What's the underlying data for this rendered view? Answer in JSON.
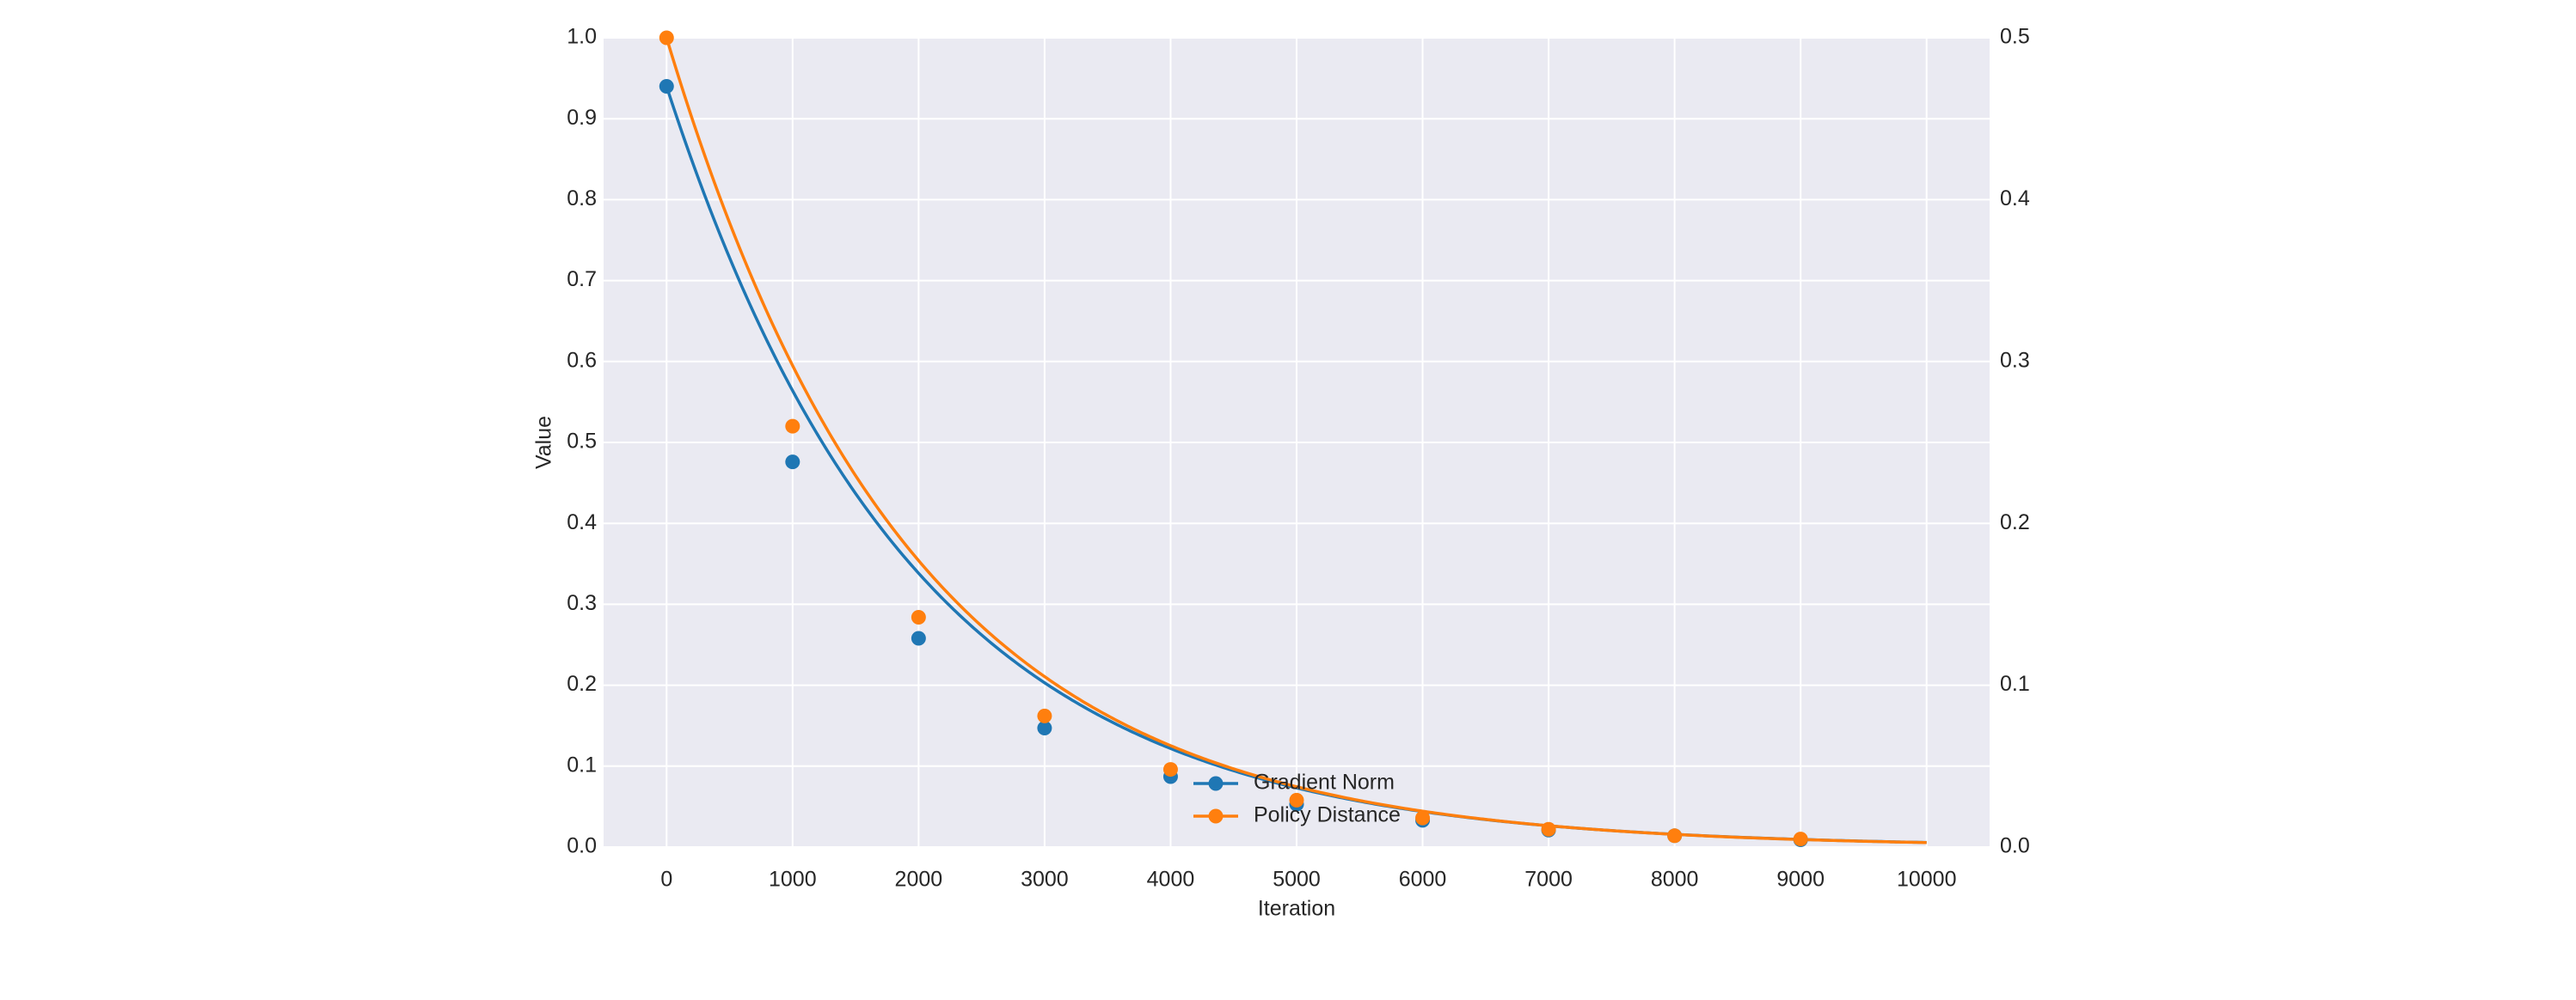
{
  "chart_data": {
    "type": "line",
    "xlabel": "Iteration",
    "ylabel": "Value",
    "xlim": [
      -500,
      10500
    ],
    "ylim": [
      0,
      1.0
    ],
    "y2lim": [
      0,
      0.5
    ],
    "x_ticks": [
      0,
      1000,
      2000,
      3000,
      4000,
      5000,
      6000,
      7000,
      8000,
      9000,
      10000
    ],
    "x_tick_labels": [
      "0",
      "1000",
      "2000",
      "3000",
      "4000",
      "5000",
      "6000",
      "7000",
      "8000",
      "9000",
      "10000"
    ],
    "y_ticks": [
      0.0,
      0.1,
      0.2,
      0.3,
      0.4,
      0.5,
      0.6,
      0.7,
      0.8,
      0.9,
      1.0
    ],
    "y_tick_labels": [
      "0.0",
      "0.1",
      "0.2",
      "0.3",
      "0.4",
      "0.5",
      "0.6",
      "0.7",
      "0.8",
      "0.9",
      "1.0"
    ],
    "y2_ticks": [
      0.0,
      0.1,
      0.2,
      0.3,
      0.4,
      0.5
    ],
    "y2_tick_labels": [
      "0.0",
      "0.1",
      "0.2",
      "0.3",
      "0.4",
      "0.5"
    ],
    "grid": true,
    "legend_position": "lower-center",
    "series": [
      {
        "name": "Gradient Norm",
        "axis": "left",
        "color": "#1f77b4",
        "curve_scale": 0.94,
        "curve_decay_per_1000": 0.6,
        "marker_x": [
          0,
          1000,
          2000,
          3000,
          4000,
          5000,
          6000,
          7000,
          8000,
          9000
        ],
        "marker_y": [
          0.94,
          0.476,
          0.258,
          0.147,
          0.087,
          0.053,
          0.033,
          0.021,
          0.014,
          0.009
        ]
      },
      {
        "name": "Policy Distance",
        "axis": "right",
        "color": "#ff7f0e",
        "curve_scale": 0.5,
        "curve_decay_per_1000": 0.595,
        "marker_x": [
          0,
          1000,
          2000,
          3000,
          4000,
          5000,
          6000,
          7000,
          8000,
          9000
        ],
        "marker_y": [
          0.5,
          0.26,
          0.142,
          0.081,
          0.048,
          0.029,
          0.018,
          0.011,
          0.007,
          0.005
        ]
      }
    ]
  }
}
